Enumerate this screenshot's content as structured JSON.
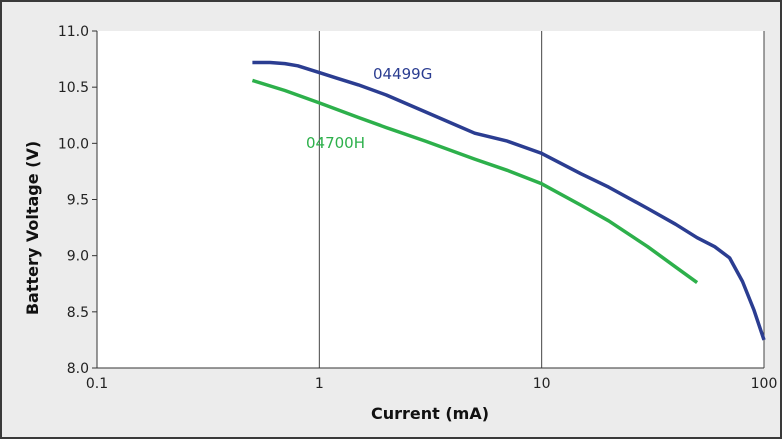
{
  "chart_data": {
    "type": "line",
    "title": "",
    "xlabel": "Current (mA)",
    "ylabel": "Battery Voltage (V)",
    "x_scale": "log",
    "xlim": [
      0.1,
      100
    ],
    "ylim": [
      8.0,
      11.0
    ],
    "x_ticks": [
      "0.1",
      "1",
      "10",
      "100"
    ],
    "y_ticks": [
      "8.0",
      "8.5",
      "9.0",
      "9.5",
      "10.0",
      "10.5",
      "11.0"
    ],
    "x_grid": true,
    "y_grid": false,
    "legend": "inline labels",
    "series": [
      {
        "name": "04499G",
        "color": "#2b3d91",
        "x": [
          0.5,
          0.6,
          0.7,
          0.8,
          1,
          1.2,
          1.5,
          2,
          3,
          5,
          7,
          10,
          15,
          20,
          30,
          40,
          50,
          60,
          70,
          80,
          90,
          100
        ],
        "y": [
          10.72,
          10.72,
          10.71,
          10.69,
          10.63,
          10.58,
          10.52,
          10.43,
          10.28,
          10.09,
          10.02,
          9.91,
          9.73,
          9.61,
          9.42,
          9.28,
          9.16,
          9.08,
          8.98,
          8.77,
          8.52,
          8.25
        ]
      },
      {
        "name": "04700H",
        "color": "#2db04b",
        "x": [
          0.5,
          0.7,
          1,
          1.5,
          2,
          3,
          5,
          7,
          10,
          15,
          20,
          30,
          40,
          50
        ],
        "y": [
          10.56,
          10.47,
          10.36,
          10.23,
          10.14,
          10.02,
          9.86,
          9.76,
          9.64,
          9.45,
          9.31,
          9.08,
          8.9,
          8.76
        ]
      }
    ]
  }
}
